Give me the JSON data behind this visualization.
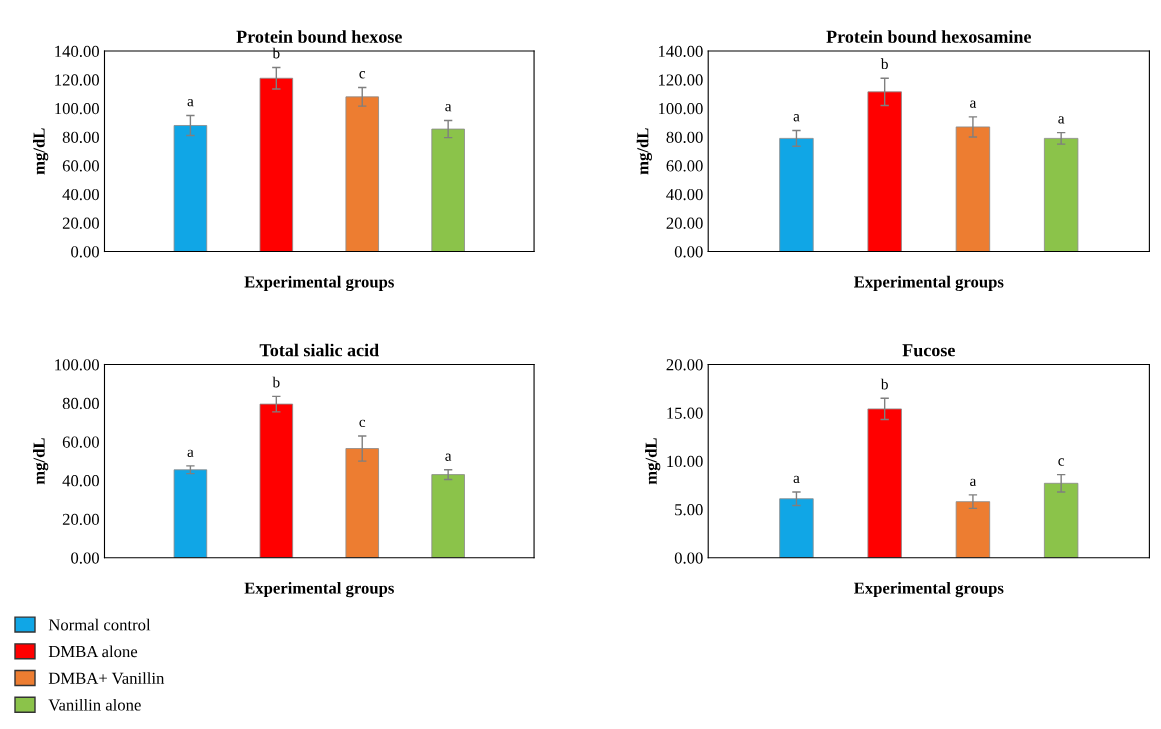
{
  "chart_data": [
    {
      "type": "bar",
      "title": "Protein bound hexose",
      "xlabel": "Experimental groups",
      "ylabel": "mg/dL",
      "categories": [
        null
      ],
      "legend": "bottom left",
      "ylim": [
        0,
        140
      ],
      "yticks": [
        {
          "value": 0,
          "label": "0.00"
        },
        {
          "value": 20,
          "label": "20.00"
        },
        {
          "value": 40,
          "label": "40.00"
        },
        {
          "value": 60,
          "label": "60.00"
        },
        {
          "value": 80,
          "label": "80.00"
        },
        {
          "value": 100,
          "label": "100.00"
        },
        {
          "value": 120,
          "label": "120.00"
        },
        {
          "value": 140,
          "label": "140.00"
        }
      ],
      "series": [
        {
          "name": "Normal control",
          "color": "#10a6e6",
          "values": [
            88
          ],
          "errors": [
            7
          ],
          "value_labels": [
            "a"
          ]
        },
        {
          "name": "DMBA alone",
          "color": "#ff0000",
          "values": [
            121
          ],
          "errors": [
            7.5
          ],
          "value_labels": [
            "b"
          ]
        },
        {
          "name": "DMBA+ Vanillin",
          "color": "#ed7d31",
          "values": [
            108
          ],
          "errors": [
            6.5
          ],
          "value_labels": [
            "c"
          ]
        },
        {
          "name": "Vanillin alone",
          "color": "#8bc34a",
          "values": [
            85.5
          ],
          "errors": [
            6
          ],
          "value_labels": [
            "a"
          ]
        }
      ]
    },
    {
      "type": "bar",
      "title": "Protein bound hexosamine",
      "xlabel": "Experimental groups",
      "ylabel": "mg/dL",
      "categories": [
        null
      ],
      "ylim": [
        0,
        140
      ],
      "yticks": [
        {
          "value": 0,
          "label": "0.00"
        },
        {
          "value": 20,
          "label": "20.00"
        },
        {
          "value": 40,
          "label": "40.00"
        },
        {
          "value": 60,
          "label": "60.00"
        },
        {
          "value": 80,
          "label": "80.00"
        },
        {
          "value": 100,
          "label": "100.00"
        },
        {
          "value": 120,
          "label": "120.00"
        },
        {
          "value": 140,
          "label": "140.00"
        }
      ],
      "series": [
        {
          "color": "#10a6e6",
          "values": [
            79
          ],
          "errors": [
            5.5
          ],
          "value_labels": [
            "a"
          ]
        },
        {
          "color": "#ff0000",
          "values": [
            111.5
          ],
          "errors": [
            9.5
          ],
          "value_labels": [
            "b"
          ]
        },
        {
          "color": "#ed7d31",
          "values": [
            87
          ],
          "errors": [
            7
          ],
          "value_labels": [
            "a"
          ]
        },
        {
          "color": "#8bc34a",
          "values": [
            79
          ],
          "errors": [
            4
          ],
          "value_labels": [
            "a"
          ]
        }
      ]
    },
    {
      "type": "bar",
      "title": "Total sialic acid",
      "xlabel": "Experimental groups",
      "ylabel": "mg/dL",
      "categories": [
        null
      ],
      "ylim": [
        0,
        100
      ],
      "yticks": [
        {
          "value": 0,
          "label": "0.00"
        },
        {
          "value": 20,
          "label": "20.00"
        },
        {
          "value": 40,
          "label": "40.00"
        },
        {
          "value": 60,
          "label": "60.00"
        },
        {
          "value": 80,
          "label": "80.00"
        },
        {
          "value": 100,
          "label": "100.00"
        }
      ],
      "series": [
        {
          "color": "#10a6e6",
          "values": [
            45.5
          ],
          "errors": [
            2
          ],
          "value_labels": [
            "a"
          ]
        },
        {
          "color": "#ff0000",
          "values": [
            79.5
          ],
          "errors": [
            4
          ],
          "value_labels": [
            "b"
          ]
        },
        {
          "color": "#ed7d31",
          "values": [
            56.5
          ],
          "errors": [
            6.5
          ],
          "value_labels": [
            "c"
          ]
        },
        {
          "color": "#8bc34a",
          "values": [
            43
          ],
          "errors": [
            2.5
          ],
          "value_labels": [
            "a"
          ]
        }
      ]
    },
    {
      "type": "bar",
      "title": "Fucose",
      "xlabel": "Experimental groups",
      "ylabel": "mg/dL",
      "categories": [
        null
      ],
      "ylim": [
        0,
        20
      ],
      "yticks": [
        {
          "value": 0,
          "label": "0.00"
        },
        {
          "value": 5,
          "label": "5.00"
        },
        {
          "value": 10,
          "label": "10.00"
        },
        {
          "value": 15,
          "label": "15.00"
        },
        {
          "value": 20,
          "label": "20.00"
        }
      ],
      "series": [
        {
          "color": "#10a6e6",
          "values": [
            6.1
          ],
          "errors": [
            0.7
          ],
          "value_labels": [
            "a"
          ]
        },
        {
          "color": "#ff0000",
          "values": [
            15.4
          ],
          "errors": [
            1.1
          ],
          "value_labels": [
            "b"
          ]
        },
        {
          "color": "#ed7d31",
          "values": [
            5.8
          ],
          "errors": [
            0.7
          ],
          "value_labels": [
            "a"
          ]
        },
        {
          "color": "#8bc34a",
          "values": [
            7.7
          ],
          "errors": [
            0.9
          ],
          "value_labels": [
            "c"
          ]
        }
      ]
    }
  ]
}
